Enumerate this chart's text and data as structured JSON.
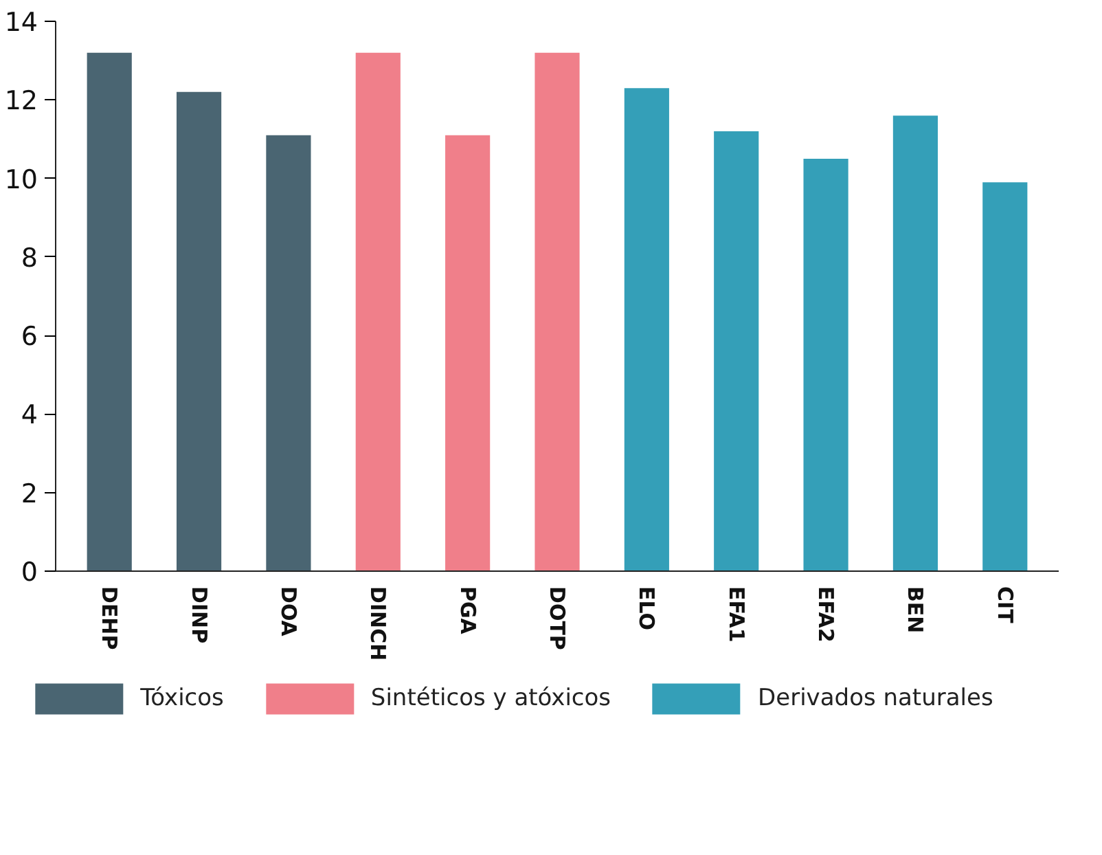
{
  "chart_data": {
    "type": "bar",
    "categories": [
      "DEHP",
      "DINP",
      "DOA",
      "DINCH",
      "PGA",
      "DOTP",
      "ELO",
      "EFA1",
      "EFA2",
      "BEN",
      "CIT"
    ],
    "series": [
      {
        "name": "Tóxicos",
        "color": "#4a6572",
        "values": [
          13.2,
          12.2,
          11.1,
          null,
          null,
          null,
          null,
          null,
          null,
          null,
          null
        ]
      },
      {
        "name": "Sintéticos y atóxicos",
        "color": "#f07f8a",
        "values": [
          null,
          null,
          null,
          13.2,
          11.1,
          13.2,
          null,
          null,
          null,
          null,
          null
        ]
      },
      {
        "name": "Derivados naturales",
        "color": "#349fb8",
        "values": [
          null,
          null,
          null,
          null,
          null,
          null,
          12.3,
          11.2,
          10.5,
          11.6,
          9.9
        ]
      }
    ],
    "ylim": [
      0,
      14
    ],
    "yticks": [
      0,
      2,
      4,
      6,
      8,
      10,
      12,
      14
    ],
    "grid": false,
    "legend": "bottom"
  }
}
